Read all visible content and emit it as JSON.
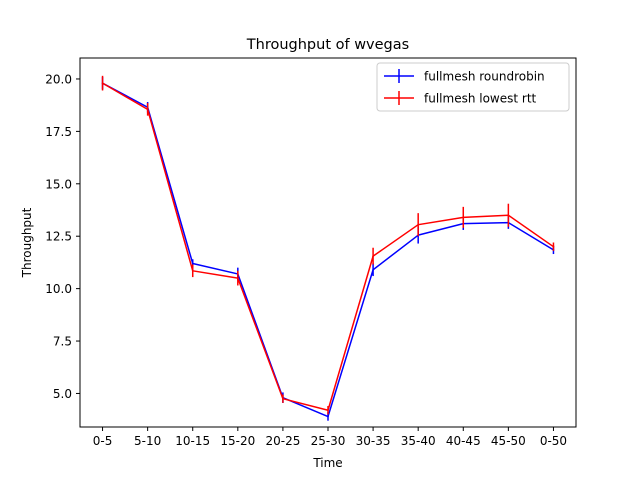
{
  "chart_data": {
    "type": "line",
    "title": "Throughput of wvegas",
    "xlabel": "Time",
    "ylabel": "Throughput",
    "categories": [
      "0-5",
      "5-10",
      "10-15",
      "15-20",
      "20-25",
      "25-30",
      "30-35",
      "35-40",
      "40-45",
      "45-50",
      "0-50"
    ],
    "ylim": [
      3.4,
      21.0
    ],
    "yticks": [
      "5.0",
      "7.5",
      "10.0",
      "12.5",
      "15.0",
      "17.5",
      "20.0"
    ],
    "grid": false,
    "legend_position": "top-right",
    "series": [
      {
        "name": "fullmesh roundrobin",
        "color": "#0000ff",
        "values": [
          19.8,
          18.65,
          11.2,
          10.7,
          4.8,
          3.9,
          10.9,
          12.55,
          13.1,
          13.15,
          11.85
        ],
        "errors": [
          0.3,
          0.25,
          0.2,
          0.3,
          0.25,
          0.2,
          0.3,
          0.4,
          0.3,
          0.3,
          0.2
        ]
      },
      {
        "name": "fullmesh lowest rtt",
        "color": "#ff0000",
        "values": [
          19.8,
          18.55,
          10.85,
          10.5,
          4.75,
          4.2,
          11.55,
          13.05,
          13.4,
          13.5,
          12.0
        ],
        "errors": [
          0.35,
          0.3,
          0.3,
          0.35,
          0.2,
          0.2,
          0.4,
          0.55,
          0.5,
          0.55,
          0.2
        ]
      }
    ]
  }
}
